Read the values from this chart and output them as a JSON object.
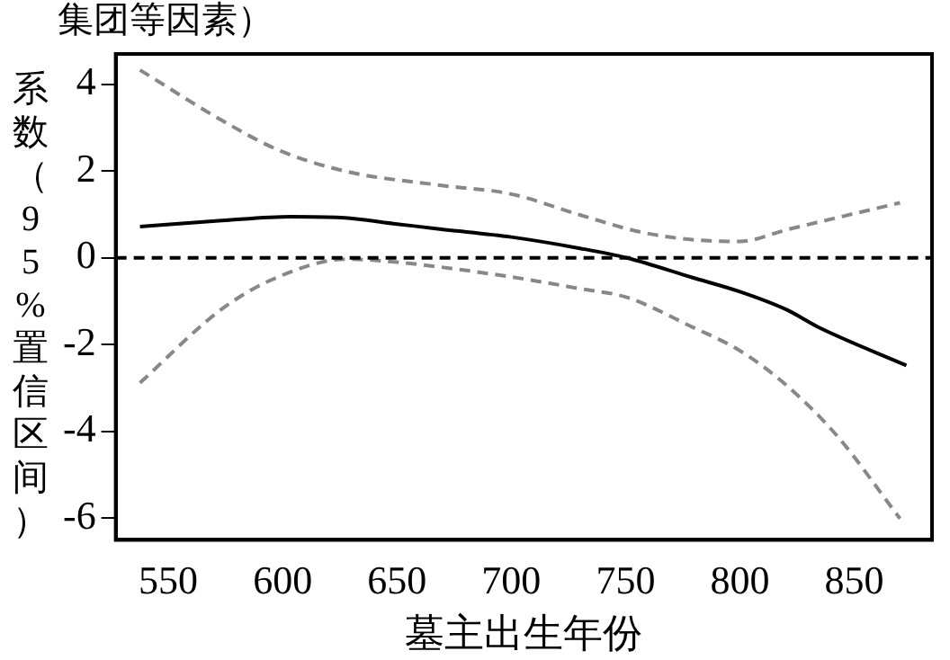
{
  "chart_data": {
    "type": "line",
    "title": "集团等因素）",
    "xlabel": "墓主出生年份",
    "ylabel": "系数（95%置信区间）",
    "xlim": [
      527,
      884
    ],
    "xticks": [
      550,
      600,
      650,
      700,
      750,
      800,
      850
    ],
    "ylim": [
      -6.5,
      4.7
    ],
    "yticks": [
      -6,
      -4,
      -2,
      0,
      2,
      4
    ],
    "grid": false,
    "legend": false,
    "marker": "none",
    "series": [
      {
        "color": "#000000",
        "line_style": "solid",
        "x": [
          537.6,
          573.4,
          603.6,
          625.5,
          650,
          669.5,
          700,
          730,
          750.5,
          779,
          800,
          820.6,
          834,
          872.8
        ],
        "values": [
          0.72,
          0.86,
          0.95,
          0.93,
          0.78,
          0.66,
          0.48,
          0.22,
          0,
          -0.45,
          -0.78,
          -1.2,
          -1.59,
          -2.48
        ]
      },
      {
        "color": "#888888",
        "line_style": "dashed",
        "x": [
          537.6,
          573.4,
          598,
          628,
          669.5,
          700,
          730,
          757,
          779,
          800,
          820.6,
          870
        ],
        "values": [
          4.33,
          3.17,
          2.49,
          1.99,
          1.67,
          1.47,
          0.99,
          0.59,
          0.42,
          0.38,
          0.65,
          1.27
        ]
      },
      {
        "color": "#888888",
        "line_style": "dashed",
        "x": [
          537.6,
          573.4,
          598,
          628,
          650,
          700,
          730,
          750.5,
          779,
          800,
          820.6,
          842.6,
          870
        ],
        "values": [
          -2.88,
          -1.18,
          -0.44,
          -0.03,
          -0.1,
          -0.44,
          -0.71,
          -0.91,
          -1.59,
          -2.14,
          -2.95,
          -4.11,
          -6.01
        ]
      }
    ],
    "ref_lines": [
      {
        "axis": "y",
        "value": 0,
        "color": "#000000",
        "line_style": "dashed"
      }
    ]
  }
}
